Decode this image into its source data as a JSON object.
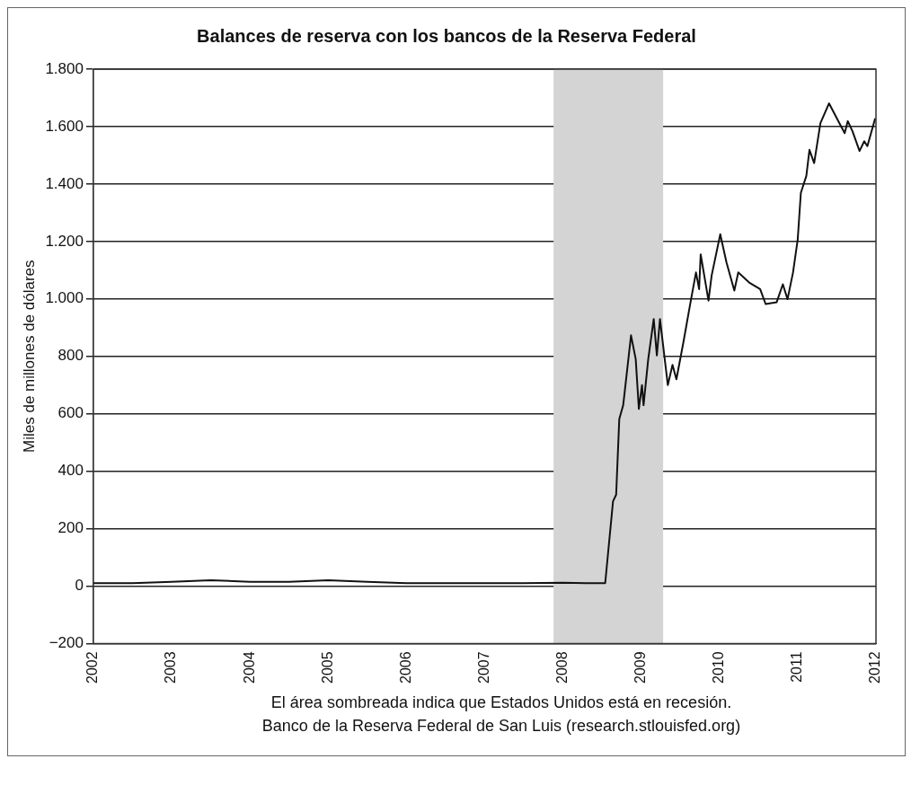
{
  "chart_data": {
    "type": "line",
    "title": "Balances de reserva con los bancos de la Reserva Federal",
    "ylabel": "Miles de millones de dólares",
    "annotations": [
      "El área sombreada indica que Estados Unidos está en recesión.",
      "Banco de la Reserva Federal de San Luis (research.stlouisfed.org)"
    ],
    "x": [
      2002,
      2002.5,
      2003,
      2003.5,
      2004,
      2004.5,
      2005,
      2005.5,
      2006,
      2006.5,
      2007,
      2007.5,
      2008,
      2008.3,
      2008.54,
      2008.64,
      2008.68,
      2008.72,
      2008.77,
      2008.87,
      2008.93,
      2008.97,
      2009.01,
      2009.03,
      2009.09,
      2009.16,
      2009.2,
      2009.24,
      2009.34,
      2009.4,
      2009.45,
      2009.54,
      2009.63,
      2009.7,
      2009.74,
      2009.76,
      2009.86,
      2009.9,
      2010.01,
      2010.09,
      2010.19,
      2010.24,
      2010.38,
      2010.52,
      2010.59,
      2010.73,
      2010.81,
      2010.87,
      2010.94,
      2011,
      2011.04,
      2011.11,
      2011.15,
      2011.21,
      2011.29,
      2011.4,
      2011.5,
      2011.6,
      2011.64,
      2011.7,
      2011.79,
      2011.85,
      2011.89,
      2011.99
    ],
    "values": [
      10,
      10,
      15,
      20,
      15,
      15,
      20,
      15,
      10,
      10,
      10,
      10,
      12,
      10,
      10,
      295,
      318,
      582,
      630,
      873,
      790,
      617,
      700,
      630,
      790,
      930,
      803,
      930,
      700,
      770,
      720,
      850,
      988,
      1092,
      1034,
      1155,
      994,
      1081,
      1225,
      1127,
      1029,
      1092,
      1057,
      1034,
      982,
      988,
      1051,
      999,
      1092,
      1207,
      1369,
      1428,
      1519,
      1473,
      1612,
      1681,
      1629,
      1577,
      1619,
      1584,
      1515,
      1549,
      1532,
      1629
    ],
    "color": "#111111",
    "marker": "none",
    "xlim": [
      2002,
      2012
    ],
    "xticks": [
      2002,
      2003,
      2004,
      2005,
      2006,
      2007,
      2008,
      2009,
      2010,
      2011,
      2012
    ],
    "ylim": [
      -200,
      1800
    ],
    "yticks": [
      {
        "value": -200,
        "label": "−200"
      },
      0,
      200,
      400,
      600,
      800,
      {
        "value": 1000,
        "label": "1.000"
      },
      {
        "value": 1200,
        "label": "1.200"
      },
      {
        "value": 1400,
        "label": "1.400"
      },
      {
        "value": 1600,
        "label": "1.600"
      },
      {
        "value": 1800,
        "label": "1.800"
      }
    ],
    "grid": "y",
    "bands": [
      {
        "axis": "x",
        "from": 2007.88,
        "to": 2009.28,
        "color": "#d4d4d4"
      }
    ]
  }
}
